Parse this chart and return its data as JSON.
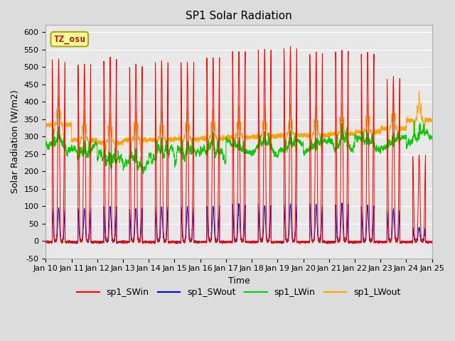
{
  "title": "SP1 Solar Radiation",
  "xlabel": "Time",
  "ylabel": "Solar Radiation (W/m2)",
  "ylim": [
    -50,
    620
  ],
  "yticks": [
    -50,
    0,
    50,
    100,
    150,
    200,
    250,
    300,
    350,
    400,
    450,
    500,
    550,
    600
  ],
  "n_days": 15,
  "start_day": 10,
  "points_per_day": 288,
  "sw_in_peaks": [
    520,
    510,
    525,
    505,
    515,
    510,
    530,
    545,
    550,
    555,
    540,
    545,
    540,
    470,
    245
  ],
  "sw_out_peaks": [
    95,
    93,
    100,
    93,
    97,
    97,
    100,
    104,
    104,
    106,
    104,
    106,
    100,
    88,
    38
  ],
  "lw_in_base": [
    275,
    258,
    235,
    222,
    252,
    253,
    257,
    268,
    268,
    272,
    272,
    278,
    282,
    283,
    298
  ],
  "lw_in_noise": 12,
  "lw_out_base": [
    338,
    295,
    287,
    295,
    296,
    298,
    300,
    303,
    305,
    308,
    308,
    312,
    318,
    328,
    352
  ],
  "lw_out_noise": 8,
  "colors": {
    "sw_in": "#FF0000",
    "sw_out": "#0000CC",
    "lw_in": "#00CC00",
    "lw_out": "#FFA500"
  },
  "annotation_text": "TZ_osu",
  "bg_color": "#DCDCDC",
  "plot_bg_color": "#E8E8E8",
  "grid_color": "#FFFFFF",
  "linewidth": 0.7,
  "title_fontsize": 11,
  "axis_fontsize": 9,
  "tick_fontsize": 8
}
